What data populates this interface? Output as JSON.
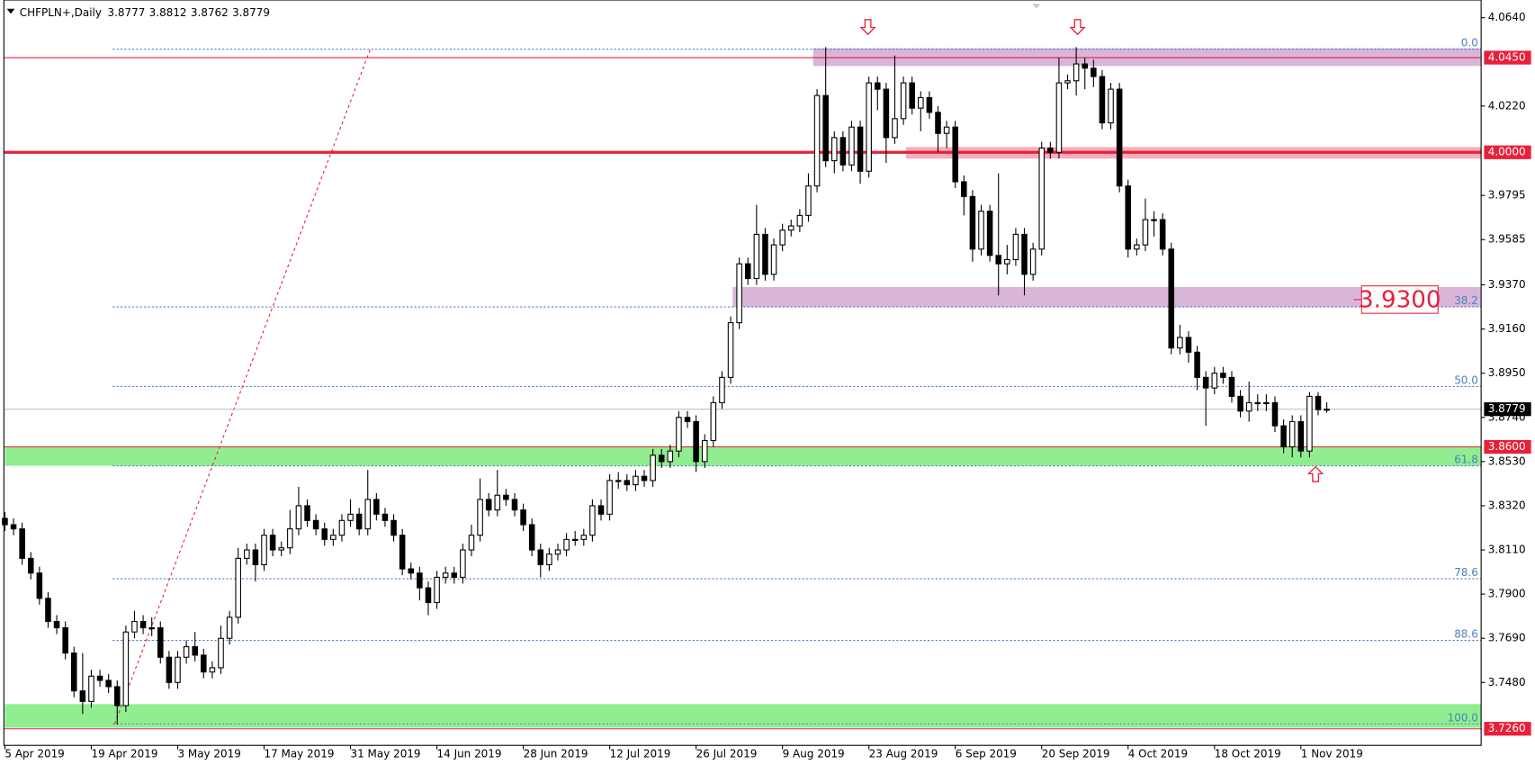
{
  "chart_data": {
    "type": "candlestick",
    "title": "CHFPLN+,Daily",
    "categories": [
      "5 Apr 2019",
      null,
      null,
      null,
      null,
      null,
      null,
      null,
      null,
      null,
      "19 Apr 2019",
      null,
      null,
      null,
      null,
      null,
      null,
      null,
      null,
      null,
      "3 May 2019",
      null,
      null,
      null,
      null,
      null,
      null,
      null,
      null,
      null,
      "17 May 2019",
      null,
      null,
      null,
      null,
      null,
      null,
      null,
      null,
      null,
      "31 May 2019",
      null,
      null,
      null,
      null,
      null,
      null,
      null,
      null,
      null,
      "14 Jun 2019",
      null,
      null,
      null,
      null,
      null,
      null,
      null,
      null,
      null,
      "28 Jun 2019",
      null,
      null,
      null,
      null,
      null,
      null,
      null,
      null,
      null,
      "12 Jul 2019",
      null,
      null,
      null,
      null,
      null,
      null,
      null,
      null,
      null,
      "26 Jul 2019",
      null,
      null,
      null,
      null,
      null,
      null,
      null,
      null,
      null,
      "9 Aug 2019",
      null,
      null,
      null,
      null,
      null,
      null,
      null,
      null,
      null,
      "23 Aug 2019",
      null,
      null,
      null,
      null,
      null,
      null,
      null,
      null,
      null,
      "6 Sep 2019",
      null,
      null,
      null,
      null,
      null,
      null,
      null,
      null,
      null,
      "20 Sep 2019",
      null,
      null,
      null,
      null,
      null,
      null,
      null,
      null,
      null,
      "4 Oct 2019",
      null,
      null,
      null,
      null,
      null,
      null,
      null,
      null,
      null,
      "18 Oct 2019",
      null,
      null,
      null,
      null,
      null,
      null,
      null,
      null,
      null,
      "1 Nov 2019",
      null,
      null,
      null
    ],
    "open": [
      3.826,
      3.823,
      3.821,
      3.807,
      3.8,
      3.788,
      3.777,
      3.774,
      3.762,
      3.744,
      3.739,
      3.751,
      3.749,
      3.746,
      3.737,
      3.772,
      3.777,
      3.774,
      3.774,
      3.76,
      3.748,
      3.76,
      3.765,
      3.761,
      3.753,
      3.755,
      3.769,
      3.779,
      3.807,
      3.811,
      3.804,
      3.818,
      3.811,
      3.812,
      3.821,
      3.832,
      3.825,
      3.821,
      3.816,
      3.818,
      3.825,
      3.828,
      3.821,
      3.835,
      3.828,
      3.825,
      3.818,
      3.802,
      3.8,
      3.793,
      3.786,
      3.798,
      3.8,
      3.798,
      3.811,
      3.818,
      3.835,
      3.83,
      3.837,
      3.835,
      3.83,
      3.823,
      3.811,
      3.804,
      3.809,
      3.811,
      3.816,
      3.816,
      3.818,
      3.832,
      3.828,
      3.844,
      3.844,
      3.842,
      3.846,
      3.844,
      3.856,
      3.853,
      3.858,
      3.874,
      3.872,
      3.853,
      3.863,
      3.881,
      3.893,
      3.919,
      3.947,
      3.94,
      3.961,
      3.942,
      3.956,
      3.963,
      3.965,
      3.97,
      3.984,
      4.027,
      3.996,
      4.007,
      3.994,
      4.012,
      3.991,
      4.033,
      4.03,
      4.007,
      4.016,
      4.033,
      4.021,
      4.026,
      4.019,
      4.009,
      4.012,
      3.986,
      3.979,
      3.954,
      3.972,
      3.951,
      3.947,
      3.949,
      3.961,
      3.942,
      3.954,
      4.002,
      4.0,
      4.033,
      4.034,
      4.042,
      4.04,
      4.036,
      4.014,
      4.03,
      3.984,
      3.954,
      3.956,
      3.968,
      3.968,
      3.954,
      3.907,
      3.912,
      3.905,
      3.893,
      3.888,
      3.895,
      3.893,
      3.884,
      3.877,
      3.881,
      3.881,
      3.881,
      3.87,
      3.86,
      3.872,
      3.858,
      3.884,
      3.8777
    ],
    "high": [
      3.829,
      3.826,
      3.824,
      3.81,
      3.803,
      3.791,
      3.78,
      3.777,
      3.765,
      3.762,
      3.754,
      3.754,
      3.752,
      3.749,
      3.775,
      3.782,
      3.78,
      3.779,
      3.777,
      3.763,
      3.763,
      3.768,
      3.772,
      3.764,
      3.758,
      3.775,
      3.782,
      3.812,
      3.814,
      3.814,
      3.821,
      3.821,
      3.815,
      3.83,
      3.841,
      3.835,
      3.828,
      3.824,
      3.821,
      3.828,
      3.835,
      3.831,
      3.849,
      3.838,
      3.831,
      3.828,
      3.821,
      3.805,
      3.803,
      3.796,
      3.801,
      3.803,
      3.803,
      3.814,
      3.823,
      3.845,
      3.838,
      3.849,
      3.84,
      3.838,
      3.833,
      3.826,
      3.814,
      3.812,
      3.814,
      3.819,
      3.82,
      3.821,
      3.835,
      3.835,
      3.847,
      3.848,
      3.847,
      3.849,
      3.849,
      3.859,
      3.859,
      3.861,
      3.877,
      3.877,
      3.875,
      3.866,
      3.884,
      3.896,
      3.922,
      3.95,
      3.95,
      3.975,
      3.964,
      3.959,
      3.966,
      3.968,
      3.973,
      3.99,
      4.03,
      4.05,
      4.01,
      4.01,
      4.015,
      4.015,
      4.036,
      4.036,
      4.033,
      4.046,
      4.036,
      4.036,
      4.029,
      4.029,
      4.022,
      4.015,
      4.015,
      3.989,
      3.982,
      3.975,
      3.975,
      3.99,
      3.956,
      3.964,
      3.964,
      3.957,
      4.005,
      4.005,
      4.045,
      4.037,
      4.05,
      4.045,
      4.044,
      4.039,
      4.033,
      4.033,
      3.987,
      3.959,
      3.978,
      3.972,
      3.971,
      3.957,
      3.918,
      3.915,
      3.908,
      3.896,
      3.898,
      3.898,
      3.896,
      3.887,
      3.891,
      3.885,
      3.885,
      3.884,
      3.873,
      3.875,
      3.875,
      3.886,
      3.886,
      3.8812
    ],
    "low": [
      3.82,
      3.818,
      3.804,
      3.797,
      3.785,
      3.774,
      3.771,
      3.759,
      3.741,
      3.733,
      3.736,
      3.746,
      3.743,
      3.728,
      3.734,
      3.769,
      3.771,
      3.77,
      3.757,
      3.745,
      3.745,
      3.757,
      3.758,
      3.75,
      3.75,
      3.752,
      3.766,
      3.776,
      3.804,
      3.796,
      3.801,
      3.808,
      3.808,
      3.809,
      3.818,
      3.822,
      3.818,
      3.813,
      3.813,
      3.815,
      3.822,
      3.818,
      3.818,
      3.825,
      3.822,
      3.815,
      3.799,
      3.797,
      3.787,
      3.78,
      3.783,
      3.795,
      3.795,
      3.795,
      3.808,
      3.815,
      3.827,
      3.827,
      3.832,
      3.827,
      3.82,
      3.808,
      3.798,
      3.801,
      3.806,
      3.808,
      3.813,
      3.813,
      3.815,
      3.825,
      3.825,
      3.84,
      3.839,
      3.839,
      3.841,
      3.841,
      3.85,
      3.85,
      3.855,
      3.869,
      3.848,
      3.85,
      3.86,
      3.878,
      3.89,
      3.916,
      3.937,
      3.937,
      3.939,
      3.939,
      3.953,
      3.96,
      3.962,
      3.967,
      3.981,
      3.993,
      3.99,
      3.991,
      3.991,
      3.985,
      3.988,
      4.02,
      3.995,
      4.004,
      4.013,
      4.018,
      4.01,
      4.016,
      4.0,
      4.002,
      3.983,
      3.97,
      3.948,
      3.951,
      3.948,
      3.932,
      3.942,
      3.946,
      3.932,
      3.939,
      3.951,
      3.997,
      3.997,
      4.03,
      4.027,
      4.03,
      4.031,
      4.011,
      4.011,
      3.981,
      3.95,
      3.951,
      3.953,
      3.96,
      3.951,
      3.904,
      3.904,
      3.9,
      3.887,
      3.87,
      3.885,
      3.89,
      3.881,
      3.874,
      3.872,
      3.877,
      3.877,
      3.867,
      3.857,
      3.855,
      3.855,
      3.855,
      3.875,
      3.8762
    ],
    "close": [
      3.823,
      3.821,
      3.807,
      3.8,
      3.788,
      3.777,
      3.774,
      3.762,
      3.744,
      3.739,
      3.751,
      3.749,
      3.746,
      3.737,
      3.772,
      3.777,
      3.774,
      3.774,
      3.76,
      3.748,
      3.76,
      3.765,
      3.761,
      3.753,
      3.755,
      3.769,
      3.779,
      3.807,
      3.811,
      3.804,
      3.818,
      3.811,
      3.812,
      3.821,
      3.832,
      3.825,
      3.821,
      3.816,
      3.818,
      3.825,
      3.828,
      3.821,
      3.835,
      3.828,
      3.825,
      3.818,
      3.802,
      3.8,
      3.793,
      3.786,
      3.798,
      3.8,
      3.798,
      3.811,
      3.818,
      3.835,
      3.83,
      3.837,
      3.835,
      3.83,
      3.823,
      3.811,
      3.804,
      3.809,
      3.811,
      3.816,
      3.816,
      3.818,
      3.832,
      3.828,
      3.844,
      3.844,
      3.842,
      3.846,
      3.844,
      3.856,
      3.853,
      3.858,
      3.874,
      3.872,
      3.853,
      3.863,
      3.881,
      3.893,
      3.919,
      3.947,
      3.94,
      3.961,
      3.942,
      3.956,
      3.963,
      3.965,
      3.97,
      3.984,
      4.027,
      3.996,
      4.007,
      3.994,
      4.012,
      3.991,
      4.033,
      4.03,
      4.007,
      4.016,
      4.033,
      4.021,
      4.026,
      4.019,
      4.009,
      4.012,
      3.986,
      3.979,
      3.954,
      3.972,
      3.951,
      3.947,
      3.949,
      3.961,
      3.942,
      3.954,
      4.002,
      4.0,
      4.033,
      4.034,
      4.042,
      4.04,
      4.036,
      4.014,
      4.03,
      3.984,
      3.954,
      3.956,
      3.968,
      3.968,
      3.954,
      3.907,
      3.912,
      3.905,
      3.893,
      3.888,
      3.895,
      3.893,
      3.884,
      3.877,
      3.881,
      3.881,
      3.881,
      3.87,
      3.86,
      3.872,
      3.858,
      3.884,
      3.8777,
      3.8779
    ],
    "ylim": [
      3.7181,
      4.0724
    ],
    "yticks": [
      {
        "value": 4.064,
        "label": "4.0640"
      },
      {
        "value": 4.022,
        "label": "4.0220"
      },
      {
        "value": 3.9795,
        "label": "3.9795"
      },
      {
        "value": 3.9585,
        "label": "3.9585"
      },
      {
        "value": 3.937,
        "label": "3.9370"
      },
      {
        "value": 3.916,
        "label": "3.9160"
      },
      {
        "value": 3.895,
        "label": "3.8950"
      },
      {
        "value": 3.874,
        "label": "3.8740"
      },
      {
        "value": 3.853,
        "label": "3.8530"
      },
      {
        "value": 3.832,
        "label": "3.8320"
      },
      {
        "value": 3.811,
        "label": "3.8110"
      },
      {
        "value": 3.79,
        "label": "3.7900"
      },
      {
        "value": 3.769,
        "label": "3.7690"
      },
      {
        "value": 3.748,
        "label": "3.7480"
      }
    ],
    "levels": [
      {
        "value": 4.045,
        "label": "4.0450",
        "color": "#e8203a"
      },
      {
        "value": 4.0,
        "label": "4.0000",
        "color": "#e8203a"
      },
      {
        "value": 3.86,
        "label": "3.8600",
        "color": "#e8203a"
      },
      {
        "value": 3.726,
        "label": "3.7260",
        "color": "#e8203a"
      }
    ],
    "zones": [
      {
        "from": 4.0495,
        "to": 4.041,
        "color": "#d9b6d9"
      },
      {
        "from": 4.0025,
        "to": 3.997,
        "color": "#f5aebb"
      },
      {
        "from": 3.936,
        "to": 3.9265,
        "color": "#d9b6d9"
      },
      {
        "from": 3.86,
        "to": 3.851,
        "color": "#90ee90"
      },
      {
        "from": 3.7377,
        "to": 3.7265,
        "color": "#90ee90"
      }
    ],
    "fib_levels": [
      {
        "value": 4.049,
        "label": "0.0"
      },
      {
        "value": 3.9265,
        "label": "38.2"
      },
      {
        "value": 3.8887,
        "label": "50.0"
      },
      {
        "value": 3.851,
        "label": "61.8"
      },
      {
        "value": 3.7973,
        "label": "78.6"
      },
      {
        "value": 3.768,
        "label": "88.6"
      },
      {
        "value": 3.7283,
        "label": "100.0"
      }
    ],
    "annotation": {
      "value": 3.93,
      "label": "3.9300"
    },
    "up_color": "#ffffff",
    "down_color": "#000000"
  }
}
